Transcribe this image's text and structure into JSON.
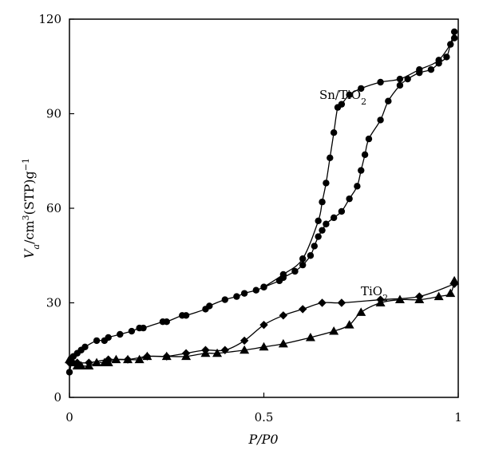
{
  "chart_data": {
    "type": "line",
    "title": "",
    "xlabel": {
      "main": "P/P0"
    },
    "ylabel": {
      "main": "V",
      "sub": "a",
      "rest": "/cm",
      "sup": "3",
      "rest2": "(STP)g",
      "sup2": "−1"
    },
    "xlim": [
      0,
      1
    ],
    "ylim": [
      0,
      120
    ],
    "xticks": [
      0,
      0.5,
      1
    ],
    "xtick_labels": [
      "0",
      "0.5",
      "1"
    ],
    "yticks": [
      0,
      30,
      60,
      90,
      120
    ],
    "ytick_labels": [
      "0",
      "30",
      "60",
      "90",
      "120"
    ],
    "grid": false,
    "series": [
      {
        "name": "Sn/TiO2",
        "label": {
          "main": "Sn/TiO",
          "sub": "2"
        },
        "marker": "circle",
        "branches": [
          {
            "branch": "adsorption",
            "x": [
              0.0,
              0.01,
              0.02,
              0.03,
              0.04,
              0.07,
              0.09,
              0.1,
              0.13,
              0.16,
              0.18,
              0.19,
              0.24,
              0.25,
              0.29,
              0.3,
              0.35,
              0.36,
              0.4,
              0.43,
              0.45,
              0.48,
              0.5,
              0.54,
              0.55,
              0.58,
              0.6,
              0.62,
              0.63,
              0.64,
              0.65,
              0.66,
              0.68,
              0.7,
              0.72,
              0.74,
              0.75,
              0.76,
              0.77,
              0.8,
              0.82,
              0.85,
              0.87,
              0.9,
              0.93,
              0.95,
              0.97,
              0.98,
              0.99
            ],
            "y": [
              8,
              13,
              14,
              15,
              16,
              18,
              18,
              19,
              20,
              21,
              22,
              22,
              24,
              24,
              26,
              26,
              28,
              29,
              31,
              32,
              33,
              34,
              35,
              37,
              38,
              40,
              42,
              45,
              48,
              51,
              53,
              55,
              57,
              59,
              63,
              67,
              72,
              77,
              82,
              88,
              94,
              99,
              101,
              103,
              104,
              106,
              108,
              112,
              116
            ]
          },
          {
            "branch": "desorption",
            "x": [
              0.99,
              0.95,
              0.9,
              0.85,
              0.8,
              0.75,
              0.72,
              0.7,
              0.69,
              0.68,
              0.67,
              0.66,
              0.65,
              0.64,
              0.6,
              0.55,
              0.5
            ],
            "y": [
              114,
              107,
              104,
              101,
              100,
              98,
              96,
              93,
              92,
              84,
              76,
              68,
              62,
              56,
              44,
              39,
              35
            ]
          }
        ]
      },
      {
        "name": "TiO2",
        "label": {
          "main": "TiO",
          "sub": "2"
        },
        "branches": [
          {
            "branch": "adsorption",
            "marker": "triangle",
            "x": [
              0.0,
              0.01,
              0.02,
              0.03,
              0.05,
              0.07,
              0.09,
              0.1,
              0.12,
              0.15,
              0.18,
              0.2,
              0.25,
              0.3,
              0.35,
              0.38,
              0.45,
              0.5,
              0.55,
              0.62,
              0.68,
              0.72,
              0.75,
              0.8,
              0.85,
              0.9,
              0.95,
              0.98,
              0.99
            ],
            "y": [
              12,
              11,
              10,
              10,
              10,
              11,
              11,
              11,
              12,
              12,
              12,
              13,
              13,
              13,
              14,
              14,
              15,
              16,
              17,
              19,
              21,
              23,
              27,
              30,
              31,
              31,
              32,
              33,
              37
            ]
          },
          {
            "branch": "desorption",
            "marker": "diamond",
            "x": [
              0.99,
              0.9,
              0.8,
              0.7,
              0.65,
              0.6,
              0.55,
              0.5,
              0.45,
              0.4,
              0.35,
              0.3,
              0.25,
              0.2,
              0.15,
              0.1,
              0.05,
              0.02,
              0.0
            ],
            "y": [
              36,
              32,
              31,
              30,
              30,
              28,
              26,
              23,
              18,
              15,
              15,
              14,
              13,
              13,
              12,
              12,
              11,
              11,
              11
            ]
          }
        ]
      }
    ]
  }
}
